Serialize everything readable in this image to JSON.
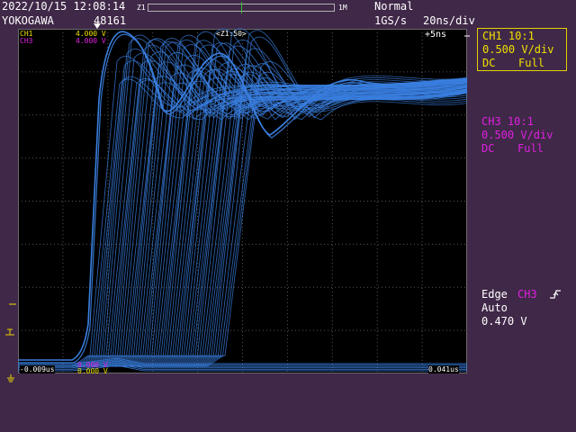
{
  "header": {
    "datetime": "2022/10/15 12:08:14",
    "brand": "YOKOGAWA",
    "record_count": "48161",
    "zoom_left": "Z1",
    "zoom_right": "1M",
    "trigger_mode": "Normal",
    "sample_rate": "1GS/s",
    "time_div": "20ns/div"
  },
  "screen": {
    "ch1_label": "CH1",
    "ch1_value": "4.000 V",
    "ch3_label": "CH3",
    "ch3_value": "4.000 V",
    "zoom_label": "<Z1:50>",
    "delay": "+5ns",
    "cursor_left_time": "-0.009us",
    "cursor_left_v1": "0.000 V",
    "cursor_left_v2": "0.000 V",
    "cursor_right_time": "0.041us"
  },
  "channels": {
    "ch1": {
      "title": "CH1 10:1",
      "scale": "0.500 V/div",
      "coupling": "DC",
      "bandwidth": "Full",
      "color": "#f0e000"
    },
    "ch3": {
      "title": "CH3 10:1",
      "scale": "0.500 V/div",
      "coupling": "DC",
      "bandwidth": "Full",
      "color": "#e020e0"
    }
  },
  "trigger": {
    "type": "Edge",
    "source": "CH3",
    "mode": "Auto",
    "level": "0.470 V"
  },
  "colors": {
    "background": "#402848",
    "screen": "#000000",
    "trace": "#3a7fe0",
    "grid": "#606060"
  }
}
